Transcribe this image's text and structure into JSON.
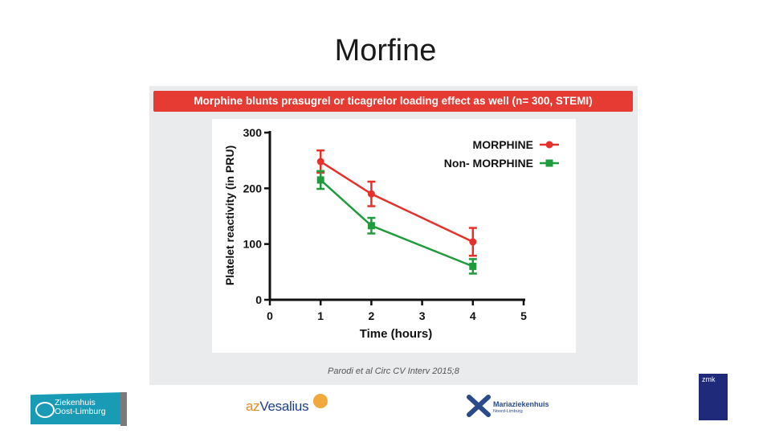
{
  "slide": {
    "title": "Morfine"
  },
  "banner": {
    "text": "Morphine blunts prasugrel or ticagrelor loading effect as well (n= 300, STEMI)"
  },
  "citation": "Parodi et al Circ CV Interv 2015;8",
  "logos": {
    "zol_line1": "Ziekenhuis",
    "zol_line2": "Oost-Limburg",
    "vesalius_prefix": "az",
    "vesalius_name": "Vesalius",
    "mz_name": "Mariaziekenhuis",
    "mz_sub": "Noord-Limburg",
    "zmk_label": "zmk"
  },
  "colors": {
    "morphine": "#e8302a",
    "non_morphine": "#1f9a3c",
    "banner": "#e53b33"
  },
  "chart_data": {
    "type": "line",
    "title": "",
    "xlabel": "Time (hours)",
    "ylabel": "Platelet reactivity (in PRU)",
    "xlim": [
      0,
      5
    ],
    "ylim": [
      0,
      300
    ],
    "xticks": [
      "0",
      "1",
      "2",
      "3",
      "4",
      "5"
    ],
    "yticks": [
      "0",
      "100",
      "200",
      "300"
    ],
    "legend_position": "top-right",
    "series": [
      {
        "name": "MORPHINE",
        "x": [
          1,
          2,
          4
        ],
        "y": [
          248,
          190,
          104
        ],
        "err": [
          20,
          22,
          25
        ]
      },
      {
        "name": "Non- MORPHINE",
        "x": [
          1,
          2,
          4
        ],
        "y": [
          215,
          133,
          60
        ],
        "err": [
          16,
          14,
          13
        ]
      }
    ]
  }
}
